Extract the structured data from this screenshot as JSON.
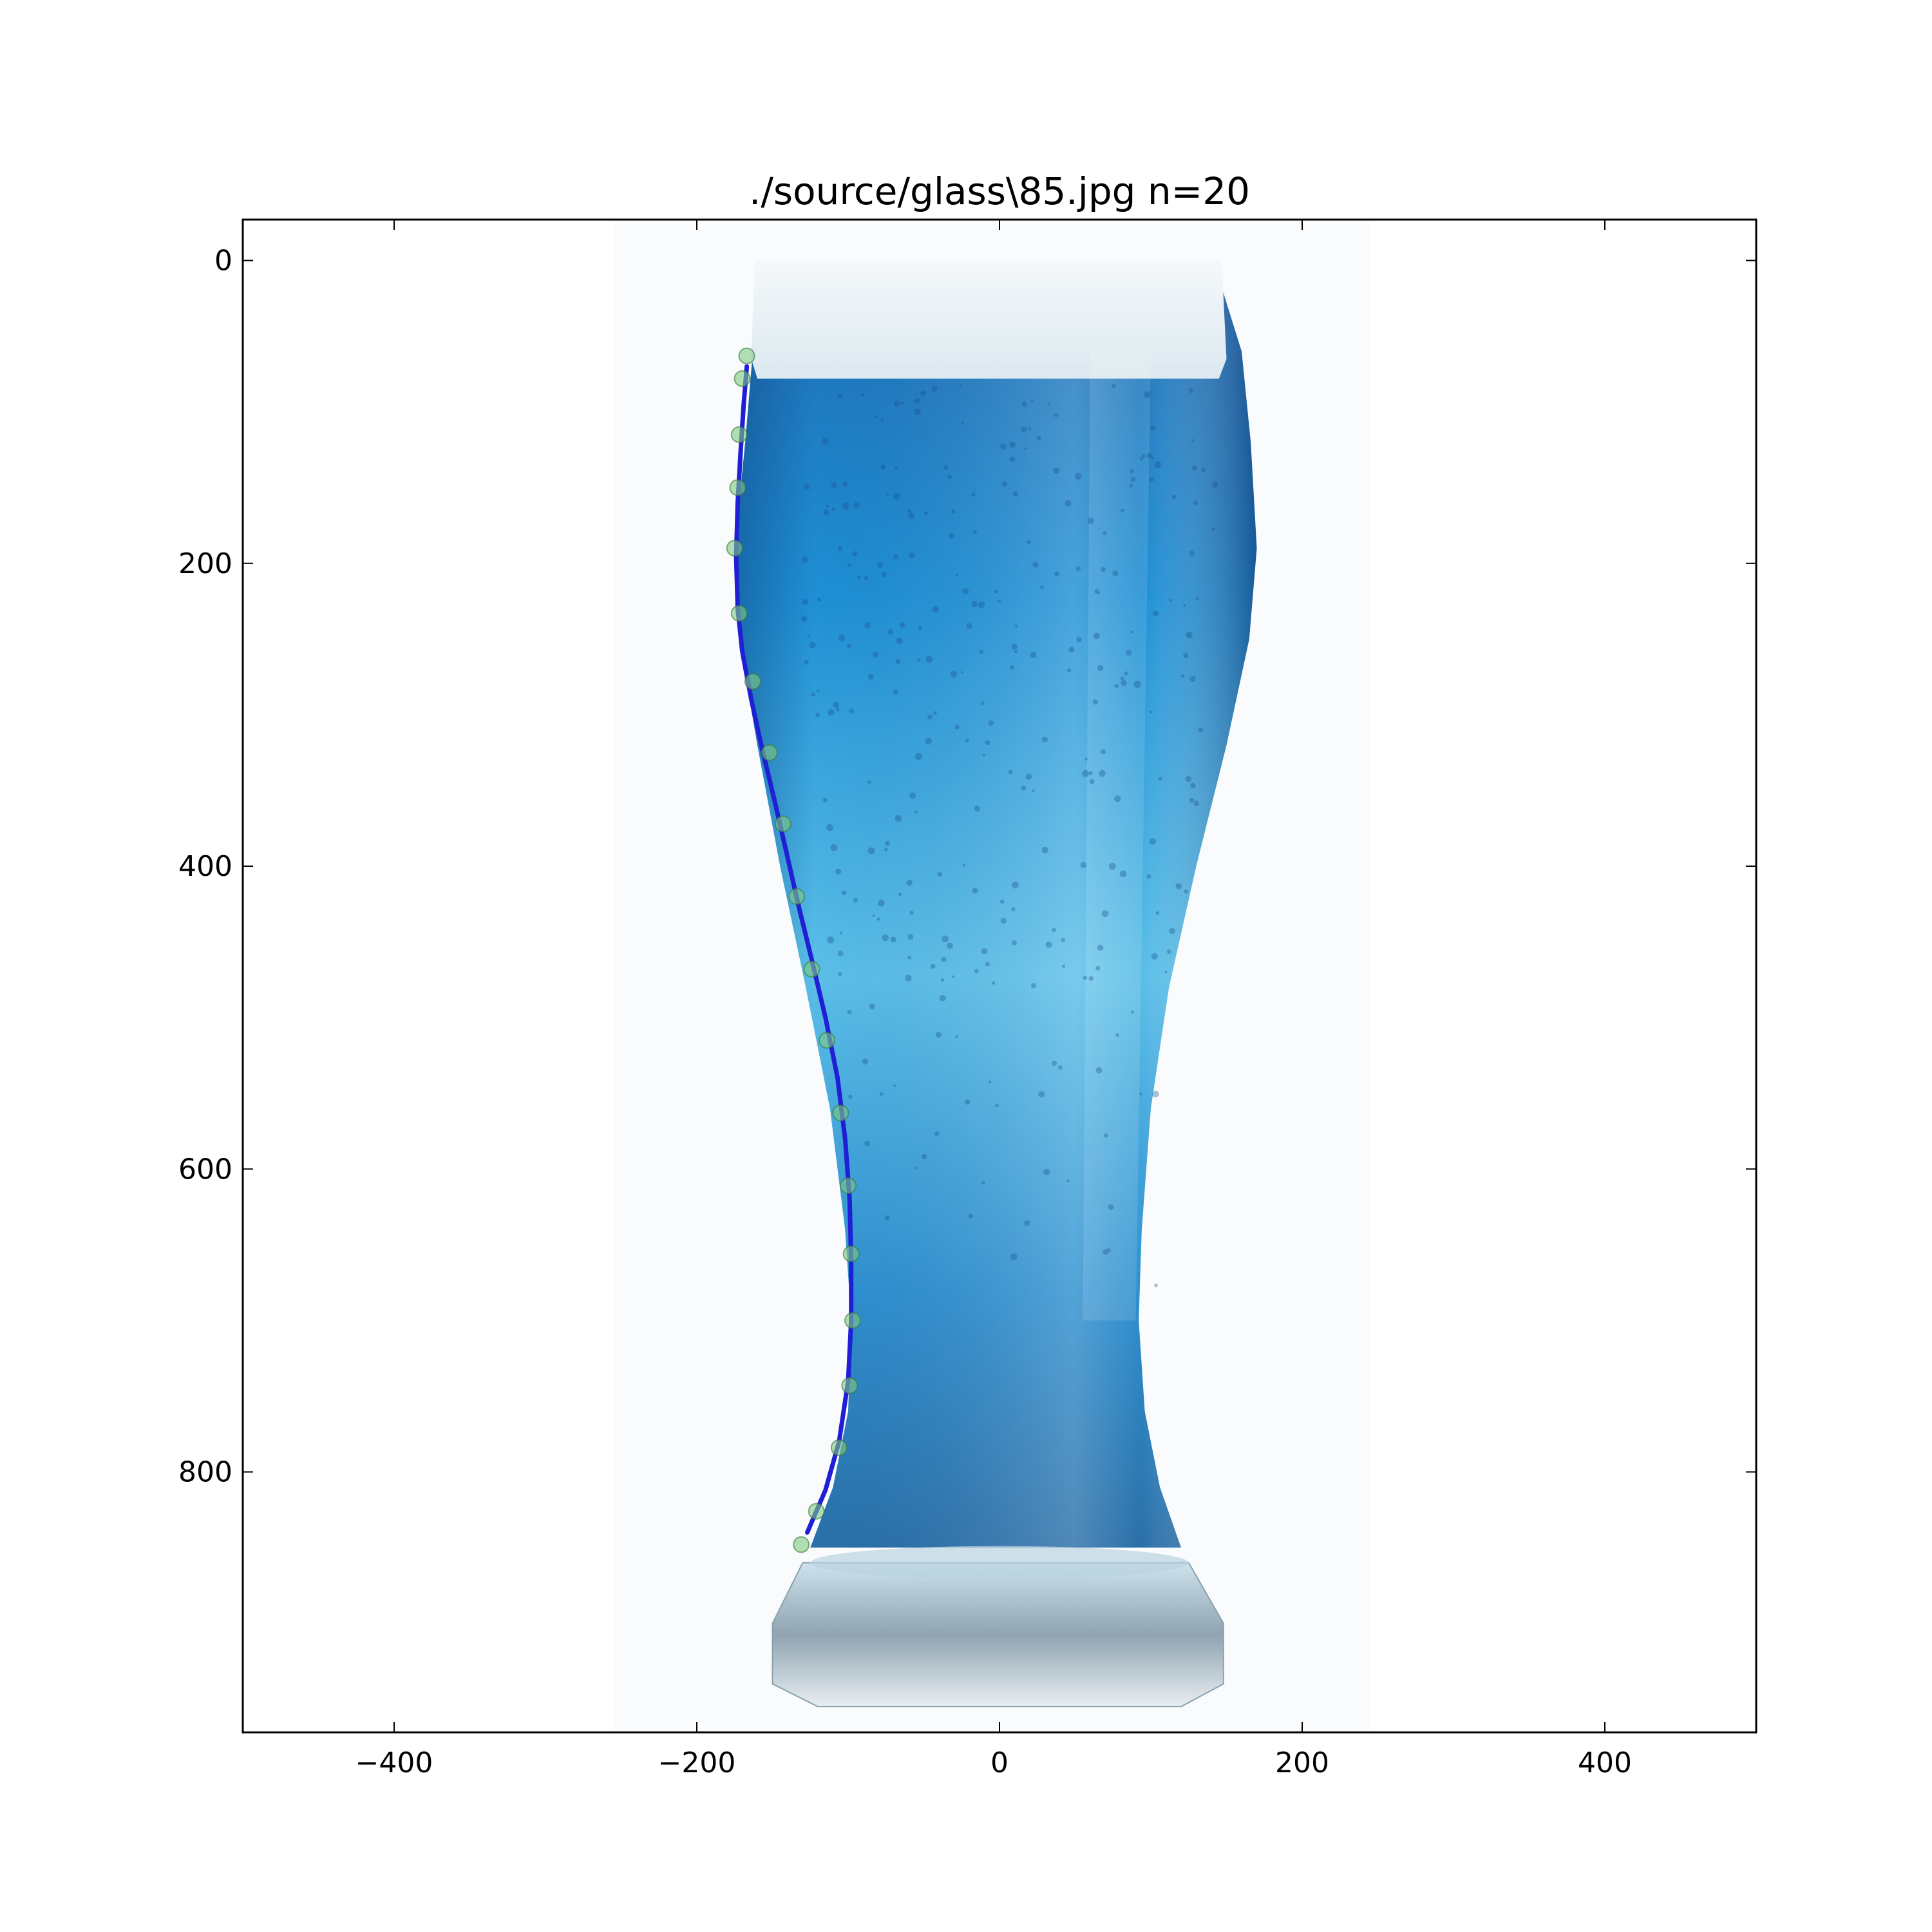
{
  "chart_data": {
    "type": "line",
    "title": "./source/glass\\85.jpg n=20",
    "xlabel": "",
    "ylabel": "",
    "xlim": [
      -500,
      500
    ],
    "ylim": [
      972,
      -27
    ],
    "y_inverted": true,
    "grid": false,
    "x_ticks": [
      -400,
      -200,
      0,
      200,
      400
    ],
    "x_tick_labels": [
      "−400",
      "−200",
      "0",
      "200",
      "400"
    ],
    "y_ticks": [
      0,
      200,
      400,
      600,
      800
    ],
    "y_tick_labels": [
      "0",
      "200",
      "400",
      "600",
      "800"
    ],
    "background": "photo of a tall pilsner glass filled with blue beer and white foam",
    "series": [
      {
        "kind": "points",
        "color": "#7fc97f",
        "x": [
          -167,
          -170,
          -172,
          -173,
          -175,
          -172,
          -163,
          -152,
          -143,
          -134,
          -124,
          -114,
          -105,
          -100,
          -98,
          -97,
          -99,
          -106,
          -121,
          -131
        ],
        "y": [
          63,
          78,
          115,
          150,
          190,
          233,
          278,
          325,
          372,
          420,
          468,
          515,
          563,
          611,
          656,
          700,
          743,
          784,
          826,
          848
        ]
      },
      {
        "kind": "line",
        "color": "#1f1fd6",
        "x": [
          -167,
          -169,
          -171,
          -173,
          -174,
          -173,
          -170,
          -164,
          -157,
          -149,
          -141,
          -133,
          -124,
          -115,
          -107,
          -102,
          -99,
          -98,
          -98,
          -100,
          -106,
          -115,
          -127
        ],
        "y": [
          70,
          95,
          125,
          160,
          195,
          230,
          258,
          290,
          322,
          355,
          390,
          425,
          462,
          500,
          540,
          580,
          620,
          660,
          700,
          740,
          780,
          812,
          840
        ]
      }
    ]
  }
}
